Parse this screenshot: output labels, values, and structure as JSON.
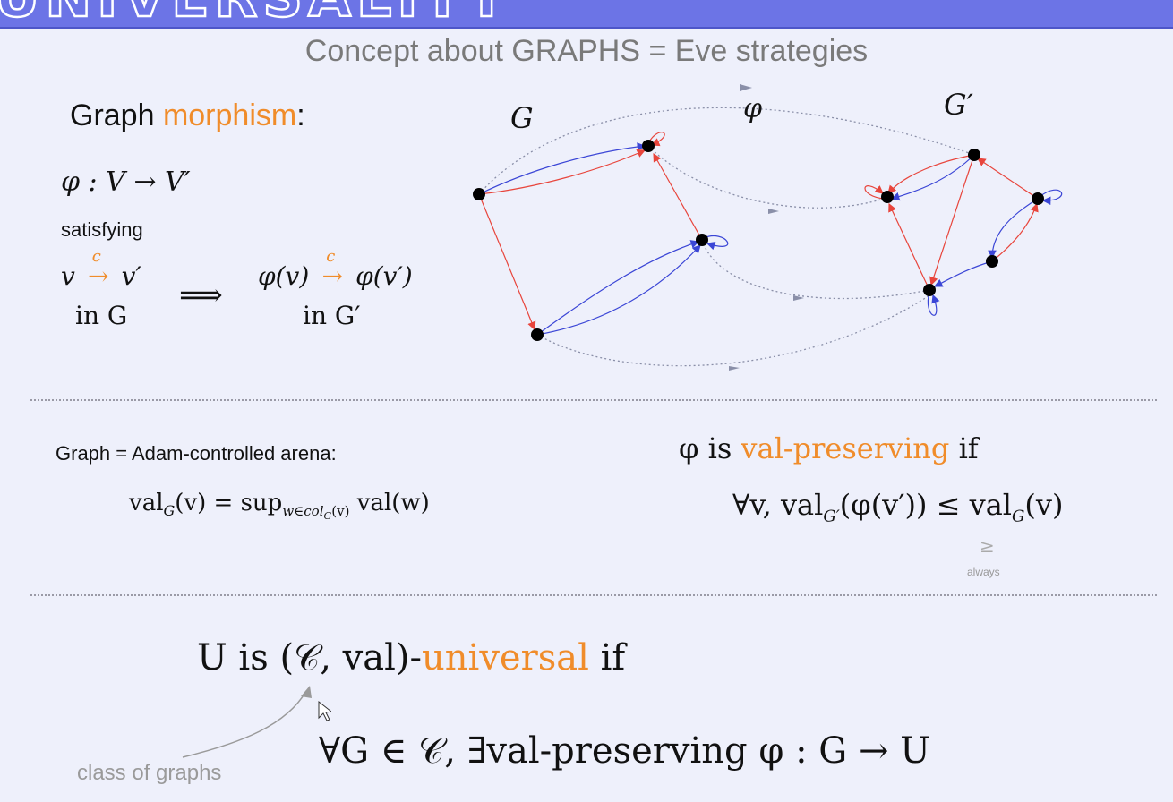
{
  "banner": {
    "title_fragment": "UNIVERSALITY"
  },
  "subtitle": "Concept about GRAPHS = Eve strategies",
  "morphism": {
    "heading_prefix": "Graph ",
    "heading_accent": "morphism",
    "heading_suffix": ":",
    "map_formula": "φ : V → V′",
    "satisfying": "satisfying",
    "edge_label": "c",
    "lhs_from": "v",
    "lhs_to": "v′",
    "lhs_in": "in G",
    "implies": "⟹",
    "rhs_from": "φ(v)",
    "rhs_to": "φ(v′)",
    "rhs_in": "in G′"
  },
  "diagram": {
    "label_G": "G",
    "label_phi": "φ",
    "label_Gprime": "G′",
    "colors": {
      "red": "#e8453c",
      "blue": "#3b46d6",
      "gray": "#8a8fa8",
      "node": "#000000"
    }
  },
  "arena": {
    "label": "Graph = Adam-controlled arena:",
    "formula_val": "val",
    "formula_sub": "G",
    "formula_arg": "(v) = sup",
    "formula_sup_sub": "w∈col",
    "formula_sup_sub2": "G",
    "formula_sup_sub3": "(v)",
    "formula_rest": " val(w)"
  },
  "preserving": {
    "prefix": "φ is ",
    "accent": "val-preserving",
    "suffix": " if",
    "formula_a": "∀v, val",
    "formula_sub1": "G′",
    "formula_b": "(φ(v′)) ≤ val",
    "formula_sub2": "G",
    "formula_c": "(v)",
    "ge": "≥",
    "always": "always"
  },
  "universal": {
    "prefix": "U is (𝒞, val)-",
    "accent": "universal",
    "suffix": " if",
    "formula": "∀G ∈ 𝒞, ∃val-preserving φ : G → U",
    "annotation": "class of graphs"
  }
}
